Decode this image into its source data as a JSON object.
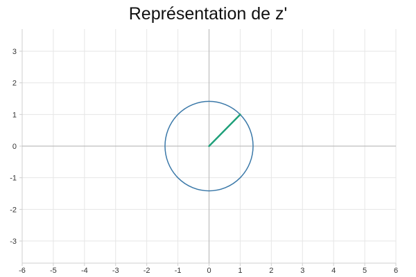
{
  "chart_data": {
    "type": "line",
    "title": "Représentation de z'",
    "xlabel": "",
    "ylabel": "",
    "xlim": [
      -6,
      6
    ],
    "ylim": [
      -3.7,
      3.7
    ],
    "x_ticks": [
      -6,
      -5,
      -4,
      -3,
      -2,
      -1,
      0,
      1,
      2,
      3,
      4,
      5,
      6
    ],
    "y_ticks": [
      -3,
      -2,
      -1,
      0,
      1,
      2,
      3
    ],
    "grid": true,
    "legend": "none",
    "series": [
      {
        "kind": "circle",
        "center": [
          0,
          0
        ],
        "radius": 1.414,
        "color": "#3a78a8"
      },
      {
        "kind": "segment",
        "points": [
          [
            0,
            0
          ],
          [
            1,
            1
          ]
        ],
        "color": "#1fa07a"
      }
    ]
  }
}
